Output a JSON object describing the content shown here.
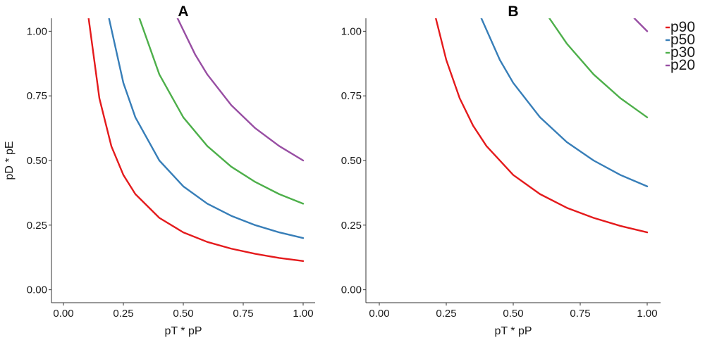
{
  "chart_data": [
    {
      "type": "line",
      "title": "A",
      "xlabel": "pT * pP",
      "ylabel": "pD * pE",
      "xlim": [
        -0.05,
        1.05
      ],
      "ylim": [
        -0.05,
        1.05
      ],
      "x_ticks": [
        "0.00",
        "0.25",
        "0.50",
        "0.75",
        "1.00"
      ],
      "y_ticks": [
        "0.00",
        "0.25",
        "0.50",
        "0.75",
        "1.00"
      ],
      "grid": false,
      "series": [
        {
          "name": "p90",
          "color": "#e41a1c",
          "x": [
            0.105,
            0.15,
            0.2,
            0.25,
            0.3,
            0.4,
            0.5,
            0.6,
            0.7,
            0.8,
            0.9,
            1.0
          ],
          "y": [
            1.05,
            0.74,
            0.555,
            0.444,
            0.37,
            0.278,
            0.222,
            0.185,
            0.159,
            0.139,
            0.123,
            0.111
          ]
        },
        {
          "name": "p50",
          "color": "#377eb8",
          "x": [
            0.19,
            0.25,
            0.3,
            0.4,
            0.5,
            0.6,
            0.7,
            0.8,
            0.9,
            1.0
          ],
          "y": [
            1.05,
            0.8,
            0.667,
            0.5,
            0.4,
            0.333,
            0.286,
            0.25,
            0.222,
            0.2
          ]
        },
        {
          "name": "p30",
          "color": "#4daf4a",
          "x": [
            0.317,
            0.4,
            0.5,
            0.6,
            0.7,
            0.8,
            0.9,
            1.0
          ],
          "y": [
            1.05,
            0.833,
            0.667,
            0.556,
            0.476,
            0.417,
            0.37,
            0.333
          ]
        },
        {
          "name": "p20",
          "color": "#984ea3",
          "x": [
            0.476,
            0.55,
            0.6,
            0.7,
            0.8,
            0.9,
            1.0
          ],
          "y": [
            1.05,
            0.909,
            0.833,
            0.714,
            0.625,
            0.556,
            0.5
          ]
        }
      ]
    },
    {
      "type": "line",
      "title": "B",
      "xlabel": "pT * pP",
      "ylabel": "",
      "xlim": [
        -0.05,
        1.05
      ],
      "ylim": [
        -0.05,
        1.05
      ],
      "x_ticks": [
        "0.00",
        "0.25",
        "0.50",
        "0.75",
        "1.00"
      ],
      "y_ticks": [
        "0.00",
        "0.25",
        "0.50",
        "0.75",
        "1.00"
      ],
      "grid": false,
      "series": [
        {
          "name": "p90",
          "color": "#e41a1c",
          "x": [
            0.211,
            0.25,
            0.3,
            0.35,
            0.4,
            0.5,
            0.6,
            0.7,
            0.8,
            0.9,
            1.0
          ],
          "y": [
            1.05,
            0.889,
            0.741,
            0.635,
            0.556,
            0.444,
            0.37,
            0.317,
            0.278,
            0.247,
            0.222
          ]
        },
        {
          "name": "p50",
          "color": "#377eb8",
          "x": [
            0.381,
            0.45,
            0.5,
            0.6,
            0.7,
            0.8,
            0.9,
            1.0
          ],
          "y": [
            1.05,
            0.889,
            0.8,
            0.667,
            0.571,
            0.5,
            0.444,
            0.4
          ]
        },
        {
          "name": "p30",
          "color": "#4daf4a",
          "x": [
            0.635,
            0.7,
            0.8,
            0.9,
            1.0
          ],
          "y": [
            1.05,
            0.952,
            0.833,
            0.741,
            0.667
          ]
        },
        {
          "name": "p20",
          "color": "#984ea3",
          "x": [
            0.952,
            1.0
          ],
          "y": [
            1.05,
            1.0
          ]
        }
      ]
    }
  ],
  "legend": {
    "placement": "right",
    "items": [
      {
        "label": "p90",
        "color": "#e41a1c"
      },
      {
        "label": "p50",
        "color": "#377eb8"
      },
      {
        "label": "p30",
        "color": "#4daf4a"
      },
      {
        "label": "p20",
        "color": "#984ea3"
      }
    ]
  }
}
